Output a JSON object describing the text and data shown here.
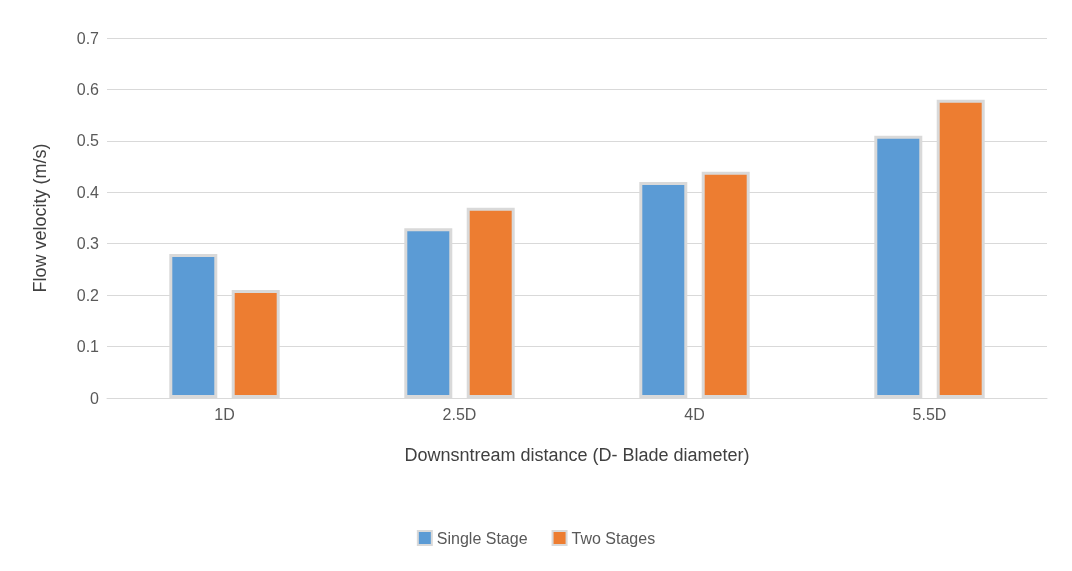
{
  "chart_data": {
    "type": "bar",
    "xlabel": "Downsntream distance (D- Blade diameter)",
    "ylabel": "Flow velocity (m/s)",
    "categories": [
      "1D",
      "2.5D",
      "4D",
      "5.5D"
    ],
    "series": [
      {
        "name": "Single Stage",
        "color": "#5b9bd5",
        "values": [
          0.28,
          0.33,
          0.42,
          0.51
        ]
      },
      {
        "name": "Two Stages",
        "color": "#ed7d31",
        "values": [
          0.21,
          0.37,
          0.44,
          0.58
        ]
      }
    ],
    "ylim": [
      0,
      0.7
    ],
    "yticks": [
      0,
      0.1,
      0.2,
      0.3,
      0.4,
      0.5,
      0.6,
      0.7
    ],
    "grid": "y",
    "legend": "bottom"
  }
}
